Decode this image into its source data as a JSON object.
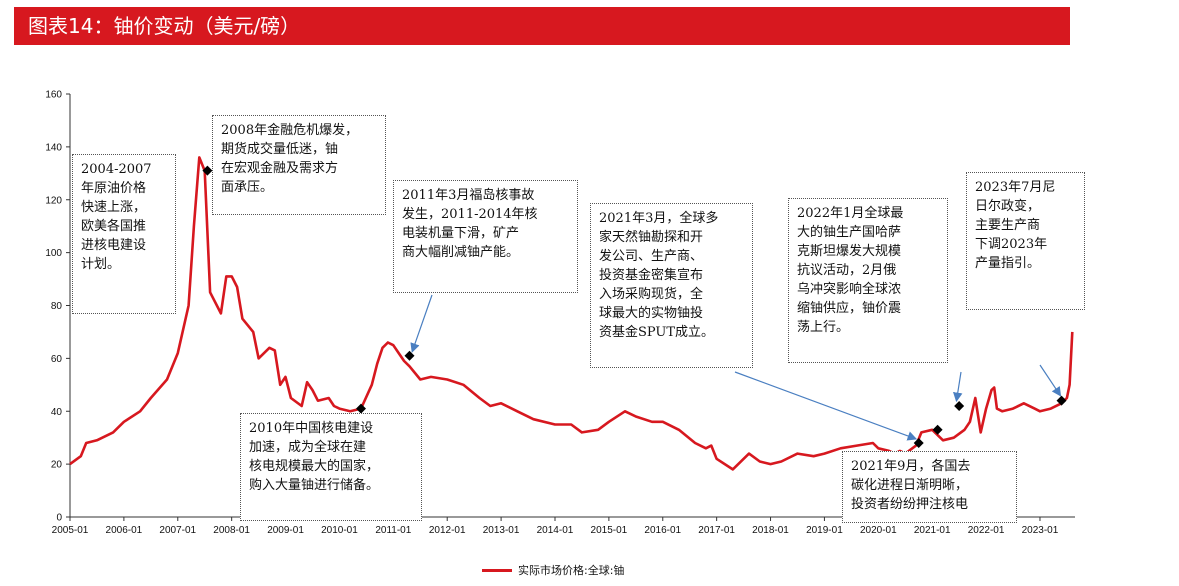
{
  "header": {
    "title": "图表14：铀价变动（美元/磅）"
  },
  "chart_data": {
    "type": "line",
    "title": "铀价变动（美元/磅）",
    "xlabel": "",
    "ylabel": "美元/磅",
    "ylim": [
      0,
      160
    ],
    "y_ticks": [
      0,
      20,
      40,
      60,
      80,
      100,
      120,
      140,
      160
    ],
    "x_ticks": [
      "2005-01",
      "2006-01",
      "2007-01",
      "2008-01",
      "2009-01",
      "2010-01",
      "2011-01",
      "2012-01",
      "2013-01",
      "2014-01",
      "2015-01",
      "2016-01",
      "2017-01",
      "2018-01",
      "2019-01",
      "2020-01",
      "2021-01",
      "2022-01",
      "2023-01"
    ],
    "series": [
      {
        "name": "实际市场价格:全球:铀",
        "color": "#d7181f",
        "x": [
          2005.0,
          2005.2,
          2005.3,
          2005.5,
          2005.8,
          2006.0,
          2006.3,
          2006.5,
          2006.8,
          2007.0,
          2007.2,
          2007.3,
          2007.4,
          2007.5,
          2007.6,
          2007.8,
          2007.9,
          2008.0,
          2008.1,
          2008.2,
          2008.4,
          2008.5,
          2008.7,
          2008.8,
          2008.9,
          2009.0,
          2009.1,
          2009.3,
          2009.4,
          2009.5,
          2009.6,
          2009.8,
          2009.9,
          2010.0,
          2010.2,
          2010.4,
          2010.6,
          2010.7,
          2010.8,
          2010.9,
          2011.0,
          2011.1,
          2011.2,
          2011.3,
          2011.5,
          2011.7,
          2012.0,
          2012.3,
          2012.6,
          2012.8,
          2013.0,
          2013.3,
          2013.6,
          2014.0,
          2014.3,
          2014.5,
          2014.8,
          2015.0,
          2015.3,
          2015.5,
          2015.8,
          2016.0,
          2016.3,
          2016.6,
          2016.8,
          2016.9,
          2017.0,
          2017.3,
          2017.6,
          2017.8,
          2018.0,
          2018.2,
          2018.5,
          2018.8,
          2019.0,
          2019.3,
          2019.6,
          2019.9,
          2020.0,
          2020.2,
          2020.3,
          2020.4,
          2020.5,
          2020.7,
          2020.8,
          2021.0,
          2021.2,
          2021.4,
          2021.6,
          2021.7,
          2021.8,
          2021.9,
          2022.0,
          2022.1,
          2022.15,
          2022.2,
          2022.3,
          2022.5,
          2022.7,
          2022.9,
          2023.0,
          2023.2,
          2023.4,
          2023.5,
          2023.55,
          2023.6
        ],
        "values": [
          20,
          23,
          28,
          29,
          32,
          36,
          40,
          45,
          52,
          62,
          80,
          110,
          136,
          131,
          85,
          77,
          91,
          91,
          87,
          75,
          70,
          60,
          64,
          63,
          50,
          53,
          45,
          42,
          51,
          48,
          44,
          45,
          42,
          41,
          40,
          41,
          50,
          58,
          64,
          66,
          65,
          62,
          59,
          57,
          52,
          53,
          52,
          50,
          45,
          42,
          43,
          40,
          37,
          35,
          35,
          32,
          33,
          36,
          40,
          38,
          36,
          36,
          33,
          28,
          26,
          27,
          22,
          18,
          24,
          21,
          20,
          21,
          24,
          23,
          24,
          26,
          27,
          28,
          26,
          25,
          24,
          25,
          24,
          27,
          32,
          33,
          29,
          30,
          33,
          36,
          45,
          32,
          41,
          48,
          49,
          41,
          40,
          41,
          43,
          41,
          40,
          41,
          43,
          45,
          50,
          70
        ]
      }
    ],
    "markers": [
      {
        "x": 2007.55,
        "y": 131
      },
      {
        "x": 2010.4,
        "y": 41
      },
      {
        "x": 2011.3,
        "y": 61
      },
      {
        "x": 2020.75,
        "y": 28
      },
      {
        "x": 2021.1,
        "y": 33
      },
      {
        "x": 2021.5,
        "y": 42
      },
      {
        "x": 2023.4,
        "y": 44
      }
    ],
    "annotations": [
      {
        "text": "2004-2007\n年原油价格\n快速上涨，\n欧美各国推\n进核电建设\n计划。"
      },
      {
        "text": "2008年金融危机爆发，\n期货成交量低迷，铀\n在宏观金融及需求方\n面承压。"
      },
      {
        "text": "2010年中国核电建设\n加速，成为全球在建\n核电规模最大的国家，\n购入大量铀进行储备。"
      },
      {
        "text": "2011年3月福岛核事故\n发生，2011-2014年核\n电装机量下滑，矿产\n商大幅削减铀产能。"
      },
      {
        "text": "2021年3月，全球多\n家天然铀勘探和开\n发公司、生产商、\n投资基金密集宣布\n入场采购现货，全\n球最大的实物铀投\n资基金SPUT成立。"
      },
      {
        "text": "2022年1月全球最\n大的铀生产国哈萨\n克斯坦爆发大规模\n抗议活动，2月俄\n乌冲突影响全球浓\n缩铀供应，铀价震\n荡上行。"
      },
      {
        "text": "2023年7月尼\n日尔政变，\n主要生产商\n下调2023年\n产量指引。"
      },
      {
        "text": "2021年9月，各国去\n碳化进程日渐明晰，\n投资者纷纷押注核电"
      }
    ],
    "legend": {
      "position": "bottom-center"
    }
  }
}
